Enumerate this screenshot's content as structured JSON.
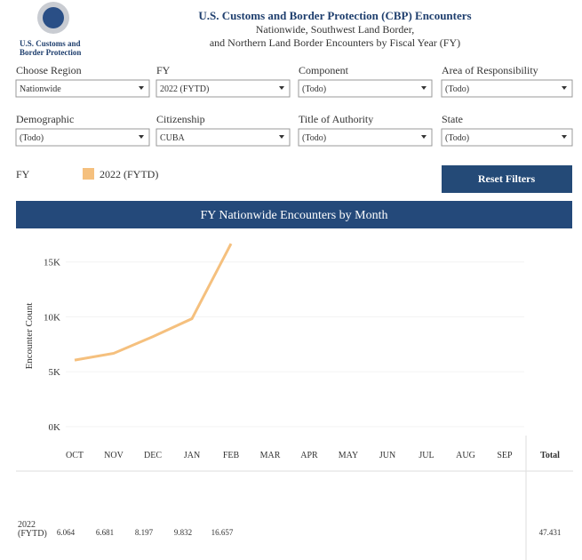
{
  "header": {
    "logo_lines": [
      "U.S. Customs and",
      "Border Protection"
    ],
    "title": "U.S. Customs and Border Protection (CBP) Encounters",
    "subtitle_lines": [
      "Nationwide, Southwest Land Border,",
      "and Northern Land Border Encounters by Fiscal Year (FY)"
    ]
  },
  "filters": [
    {
      "label": "Choose Region",
      "value": "Nationwide"
    },
    {
      "label": "FY",
      "value": "2022 (FYTD)"
    },
    {
      "label": "Component",
      "value": "(Todo)"
    },
    {
      "label": "Area of Responsibility",
      "value": "(Todo)"
    },
    {
      "label": "Demographic",
      "value": "(Todo)"
    },
    {
      "label": "Citizenship",
      "value": "CUBA"
    },
    {
      "label": "Title of Authority",
      "value": "(Todo)"
    },
    {
      "label": "State",
      "value": "(Todo)"
    }
  ],
  "legend_label": "FY",
  "reset_button": "Reset Filters",
  "chart_data": {
    "type": "line",
    "title": "FY Nationwide Encounters by Month",
    "y_label": "Encounter Count",
    "categories": [
      "OCT",
      "NOV",
      "DEC",
      "JAN",
      "FEB",
      "MAR",
      "APR",
      "MAY",
      "JUN",
      "JUL",
      "AUG",
      "SEP"
    ],
    "series": [
      {
        "name": "2022 (FYTD)",
        "color": "#f5c07e",
        "values": [
          6064,
          6681,
          8197,
          9832,
          16657,
          null,
          null,
          null,
          null,
          null,
          null,
          null
        ],
        "value_labels": [
          "6.064",
          "6.681",
          "8.197",
          "9.832",
          "16.657",
          null,
          null,
          null,
          null,
          null,
          null,
          null
        ]
      }
    ],
    "ylim": [
      0,
      17000
    ],
    "yticks": [
      {
        "value": 0,
        "label": "0K"
      },
      {
        "value": 5000,
        "label": "5K"
      },
      {
        "value": 10000,
        "label": "10K"
      },
      {
        "value": 15000,
        "label": "15K"
      }
    ],
    "grid": true
  },
  "table": {
    "total_header": "Total",
    "total": "47.431"
  }
}
